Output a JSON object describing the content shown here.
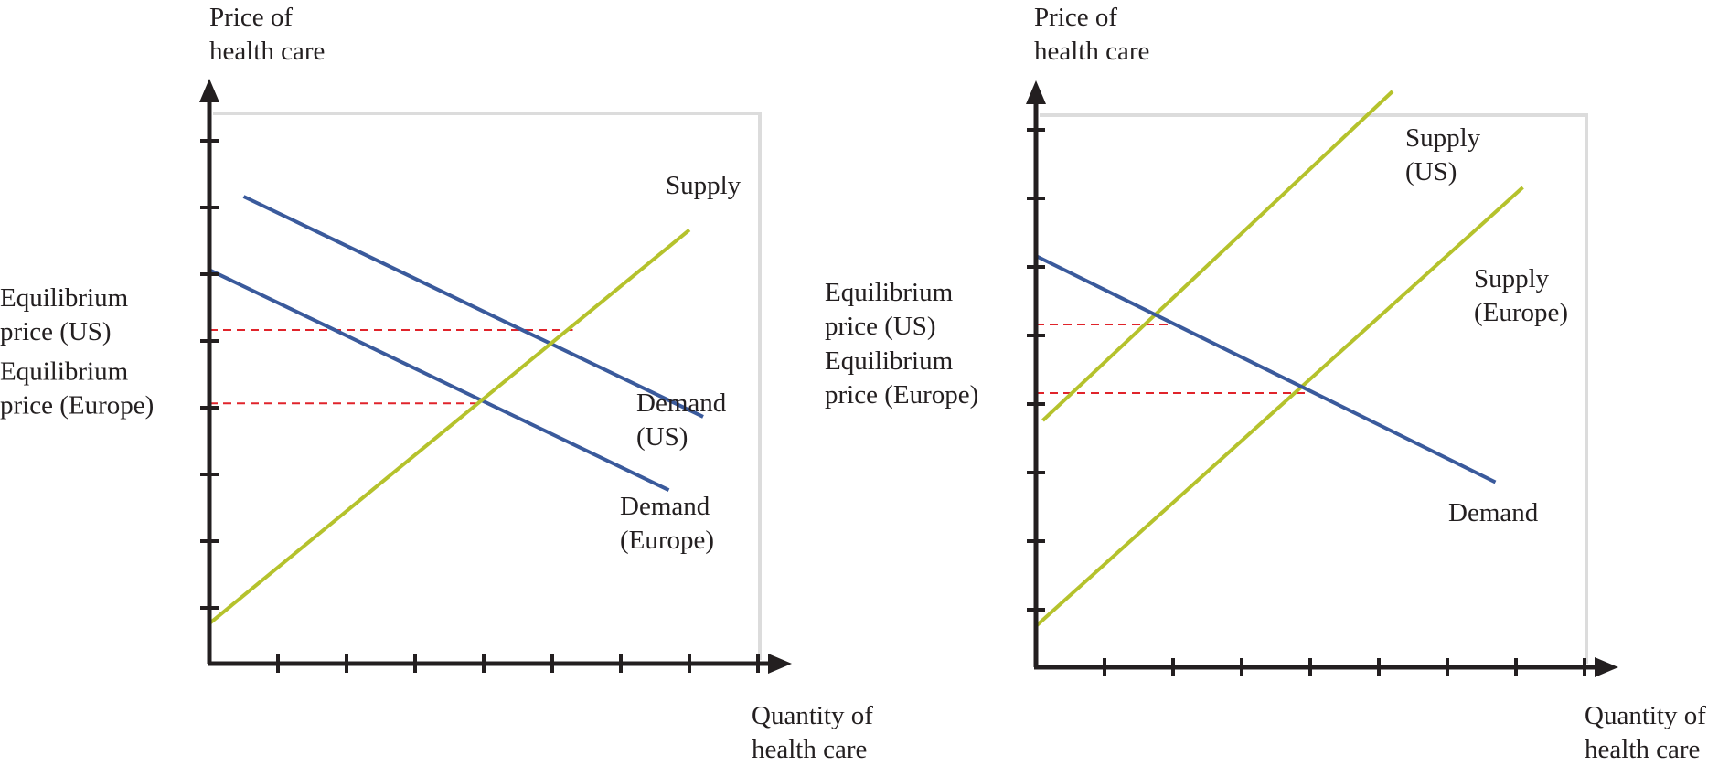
{
  "colors": {
    "demand": "#3a5a9c",
    "supply": "#b5c22c",
    "equilibrium_guide": "#e0242b",
    "axis": "#231f20",
    "panel_fill": "#ffffff",
    "panel_shadow": "#9a9a9a"
  },
  "chart_data": [
    {
      "type": "line",
      "title": "",
      "ylabel": [
        "Price of",
        "health care"
      ],
      "xlabel": [
        "Quantity of",
        "health care"
      ],
      "xlim": [
        0,
        8
      ],
      "ylim": [
        0,
        8
      ],
      "grid": false,
      "series": [
        {
          "name": [
            "Demand",
            "(US)"
          ],
          "kind": "demand",
          "points": [
            [
              0.5,
              7.0
            ],
            [
              7.2,
              3.7
            ]
          ]
        },
        {
          "name": [
            "Demand",
            "(Europe)"
          ],
          "kind": "demand",
          "points": [
            [
              0.0,
              5.9
            ],
            [
              6.7,
              2.6
            ]
          ]
        },
        {
          "name": [
            "Supply"
          ],
          "kind": "supply",
          "points": [
            [
              0.0,
              0.6
            ],
            [
              7.0,
              6.5
            ]
          ]
        }
      ],
      "equilibria": [
        {
          "label": [
            "Equilibrium",
            "price (US)"
          ],
          "x": 5.3,
          "y": 5.0
        },
        {
          "label": [
            "Equilibrium",
            "price (Europe)"
          ],
          "x": 4.0,
          "y": 3.9
        }
      ]
    },
    {
      "type": "line",
      "title": "",
      "ylabel": [
        "Price of",
        "health care"
      ],
      "xlabel": [
        "Quantity of",
        "health care"
      ],
      "xlim": [
        0,
        8
      ],
      "ylim": [
        0,
        8
      ],
      "grid": false,
      "series": [
        {
          "name": [
            "Supply",
            "(US)"
          ],
          "kind": "supply",
          "points": [
            [
              0.1,
              3.6
            ],
            [
              5.2,
              8.4
            ]
          ]
        },
        {
          "name": [
            "Supply",
            "(Europe)"
          ],
          "kind": "supply",
          "points": [
            [
              0.0,
              0.6
            ],
            [
              7.1,
              7.0
            ]
          ]
        },
        {
          "name": [
            "Demand"
          ],
          "kind": "demand",
          "points": [
            [
              0.0,
              6.0
            ],
            [
              6.7,
              2.7
            ]
          ]
        }
      ],
      "equilibria": [
        {
          "label": [
            "Equilibrium",
            "price (US)"
          ],
          "x": 2.0,
          "y": 5.0
        },
        {
          "label": [
            "Equilibrium",
            "price (Europe)"
          ],
          "x": 4.0,
          "y": 4.0
        }
      ]
    }
  ]
}
